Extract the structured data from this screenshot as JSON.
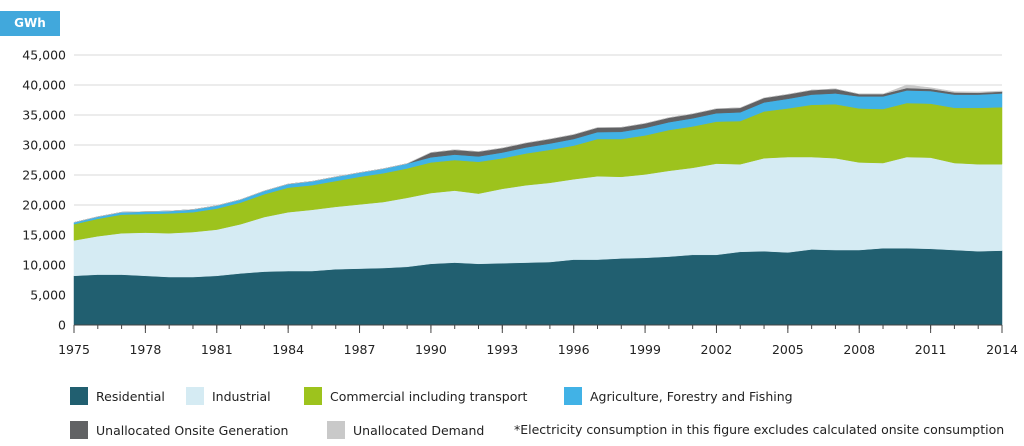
{
  "chart_data": {
    "type": "area",
    "stacked": true,
    "unit_label": "GWh",
    "x": [
      1975,
      1976,
      1977,
      1978,
      1979,
      1980,
      1981,
      1982,
      1983,
      1984,
      1985,
      1986,
      1987,
      1988,
      1989,
      1990,
      1991,
      1992,
      1993,
      1994,
      1995,
      1996,
      1997,
      1998,
      1999,
      2000,
      2001,
      2002,
      2003,
      2004,
      2005,
      2006,
      2007,
      2008,
      2009,
      2010,
      2011,
      2012,
      2013,
      2014
    ],
    "x_ticks": [
      "1975",
      "1978",
      "1981",
      "1984",
      "1987",
      "1990",
      "1993",
      "1996",
      "1999",
      "2002",
      "2005",
      "2008",
      "2011",
      "2014"
    ],
    "y_ticks": [
      "0",
      "5,000",
      "10,000",
      "15,000",
      "20,000",
      "25,000",
      "30,000",
      "35,000",
      "40,000",
      "45,000"
    ],
    "ylim": [
      0,
      45000
    ],
    "grid": "horizontal",
    "legend_position": "bottom",
    "series": [
      {
        "name": "Residential",
        "color": "#215f70",
        "values": [
          8200,
          8400,
          8400,
          8200,
          8000,
          8000,
          8200,
          8600,
          8900,
          9000,
          9000,
          9300,
          9400,
          9500,
          9700,
          10200,
          10400,
          10200,
          10300,
          10400,
          10500,
          10900,
          10900,
          11100,
          11200,
          11400,
          11700,
          11700,
          12200,
          12300,
          12100,
          12600,
          12500,
          12500,
          12800,
          12800,
          12700,
          12500,
          12300,
          12400
        ]
      },
      {
        "name": "Industrial",
        "color": "#d5ebf3",
        "values": [
          5900,
          6400,
          6900,
          7200,
          7300,
          7500,
          7700,
          8200,
          9100,
          9800,
          10200,
          10400,
          10700,
          11000,
          11500,
          11800,
          12000,
          11700,
          12400,
          12900,
          13200,
          13400,
          13900,
          13600,
          13900,
          14300,
          14500,
          15200,
          14600,
          15500,
          15900,
          15400,
          15300,
          14600,
          14200,
          15200,
          15200,
          14500,
          14500,
          14400
        ]
      },
      {
        "name": "Commercial including transport",
        "color": "#9dc31d",
        "values": [
          2700,
          2900,
          3100,
          3100,
          3300,
          3300,
          3500,
          3600,
          3800,
          4100,
          4100,
          4300,
          4600,
          4800,
          4900,
          5100,
          5100,
          5300,
          5100,
          5300,
          5500,
          5600,
          6200,
          6300,
          6500,
          6800,
          6900,
          7000,
          7200,
          7800,
          8100,
          8700,
          9000,
          9000,
          9000,
          9000,
          9000,
          9200,
          9400,
          9500
        ]
      },
      {
        "name": "Agriculture, Forestry and Fishing",
        "color": "#41b2e6",
        "values": [
          300,
          350,
          400,
          400,
          400,
          450,
          500,
          500,
          550,
          600,
          650,
          700,
          700,
          750,
          800,
          850,
          900,
          900,
          950,
          1000,
          1050,
          1100,
          1150,
          1200,
          1250,
          1300,
          1350,
          1400,
          1450,
          1500,
          1600,
          1700,
          1800,
          2000,
          2100,
          2100,
          2100,
          2200,
          2200,
          2300
        ]
      },
      {
        "name": "Unallocated Onsite Generation",
        "color": "#616264",
        "values": [
          0,
          0,
          0,
          0,
          0,
          0,
          0,
          0,
          0,
          0,
          0,
          0,
          0,
          0,
          0,
          800,
          800,
          800,
          750,
          750,
          750,
          750,
          750,
          750,
          750,
          750,
          750,
          750,
          750,
          750,
          750,
          750,
          750,
          400,
          400,
          400,
          350,
          350,
          300,
          300
        ]
      },
      {
        "name": "Unallocated Demand",
        "color": "#c9c9c9",
        "values": [
          0,
          0,
          0,
          0,
          0,
          0,
          0,
          0,
          0,
          0,
          0,
          0,
          0,
          0,
          0,
          0,
          0,
          0,
          0,
          0,
          0,
          0,
          0,
          0,
          0,
          0,
          0,
          0,
          0,
          0,
          0,
          0,
          0,
          0,
          0,
          500,
          200,
          150,
          150,
          100
        ]
      }
    ],
    "footnote": "*Electricity consumption in this figure excludes calculated onsite consumption"
  }
}
